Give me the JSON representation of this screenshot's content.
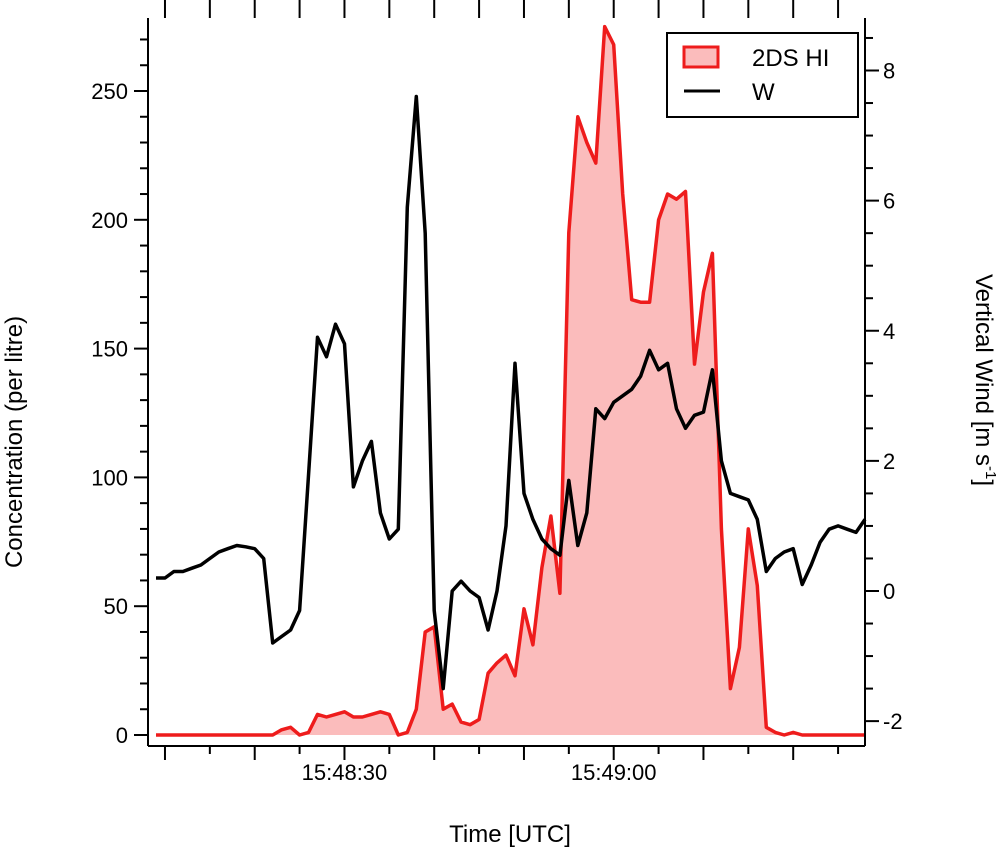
{
  "chart_data": {
    "type": "area",
    "xlabel": "Time [UTC]",
    "ylabel_left": "Concentration (per litre)",
    "ylabel_right_main": "Vertical Wind [m s",
    "ylabel_right_sup": "-1",
    "ylabel_right_end": "]",
    "xlim": [
      0,
      79
    ],
    "ylim_left": [
      0,
      275
    ],
    "ylim_right": [
      -2.2,
      8.6
    ],
    "x_ticks": [
      {
        "value": 21,
        "label": "15:48:30"
      },
      {
        "value": 51,
        "label": "15:49:00"
      }
    ],
    "y_ticks_left": [
      0,
      50,
      100,
      150,
      200,
      250
    ],
    "y_ticks_right": [
      -2,
      0,
      2,
      4,
      6,
      8
    ],
    "legend": {
      "position": "top-right",
      "entries": [
        "2DS HI",
        "W"
      ]
    },
    "series": [
      {
        "name": "2DS HI",
        "axis": "left",
        "color": "#ee1c1c",
        "fill": "#fbbcbc",
        "x": [
          0,
          1,
          2,
          3,
          4,
          5,
          6,
          7,
          8,
          9,
          10,
          11,
          12,
          13,
          14,
          15,
          16,
          17,
          18,
          19,
          20,
          21,
          22,
          23,
          24,
          25,
          26,
          27,
          28,
          29,
          30,
          31,
          32,
          33,
          34,
          35,
          36,
          37,
          38,
          39,
          40,
          41,
          42,
          43,
          44,
          45,
          46,
          47,
          48,
          49,
          50,
          51,
          52,
          53,
          54,
          55,
          56,
          57,
          58,
          59,
          60,
          61,
          62,
          63,
          64,
          65,
          66,
          67,
          68,
          69,
          70,
          71,
          72,
          73,
          74,
          75,
          76,
          77,
          78,
          79
        ],
        "values": [
          0,
          0,
          0,
          0,
          0,
          0,
          0,
          0,
          0,
          0,
          0,
          0,
          0,
          0,
          2,
          3,
          0,
          1,
          8,
          7,
          8,
          9,
          7,
          7,
          8,
          9,
          8,
          0,
          1,
          10,
          40,
          42,
          10,
          12,
          5,
          4,
          6,
          24,
          28,
          31,
          23,
          49,
          35,
          65,
          85,
          55,
          195,
          240,
          230,
          222,
          275,
          268,
          210,
          169,
          168,
          168,
          200,
          210,
          208,
          211,
          144,
          172,
          187,
          80,
          18,
          34,
          80,
          58,
          3,
          1,
          0,
          1,
          0,
          0,
          0,
          0,
          0,
          0,
          0,
          0
        ]
      },
      {
        "name": "W",
        "axis": "right",
        "color": "#000000",
        "fill": "none",
        "x": [
          0,
          1,
          2,
          3,
          4,
          5,
          6,
          7,
          8,
          9,
          10,
          11,
          12,
          13,
          14,
          15,
          16,
          17,
          18,
          19,
          20,
          21,
          22,
          23,
          24,
          25,
          26,
          27,
          28,
          29,
          30,
          31,
          32,
          33,
          34,
          35,
          36,
          37,
          38,
          39,
          40,
          41,
          42,
          43,
          44,
          45,
          46,
          47,
          48,
          49,
          50,
          51,
          52,
          53,
          54,
          55,
          56,
          57,
          58,
          59,
          60,
          61,
          62,
          63,
          64,
          65,
          66,
          67,
          68,
          69,
          70,
          71,
          72,
          73,
          74,
          75,
          76,
          77,
          78,
          79
        ],
        "values": [
          0.2,
          0.2,
          0.3,
          0.3,
          0.35,
          0.4,
          0.5,
          0.6,
          0.65,
          0.7,
          0.68,
          0.65,
          0.5,
          -0.8,
          -0.7,
          -0.6,
          -0.3,
          1.8,
          3.9,
          3.6,
          4.1,
          3.8,
          1.6,
          2,
          2.3,
          1.2,
          0.8,
          0.95,
          5.9,
          7.6,
          5.5,
          -0.3,
          -1.5,
          0,
          0.15,
          0,
          -0.1,
          -0.6,
          0,
          1,
          3.5,
          1.5,
          1.1,
          0.8,
          0.65,
          0.55,
          1.7,
          0.7,
          1.2,
          2.8,
          2.65,
          2.9,
          3,
          3.1,
          3.3,
          3.7,
          3.4,
          3.5,
          2.8,
          2.5,
          2.7,
          2.75,
          3.4,
          2,
          1.5,
          1.45,
          1.4,
          1.1,
          0.3,
          0.5,
          0.6,
          0.65,
          0.1,
          0.4,
          0.75,
          0.95,
          1,
          0.95,
          0.9,
          1.1
        ]
      }
    ]
  }
}
